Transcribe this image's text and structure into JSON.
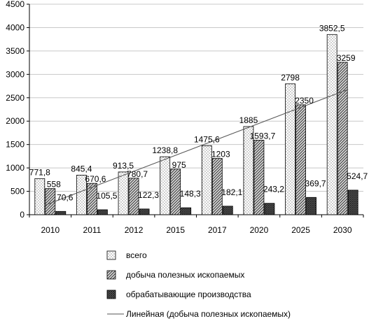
{
  "chart_data": {
    "type": "bar",
    "title": "",
    "xlabel": "",
    "ylabel": "",
    "ylim": [
      0,
      4500
    ],
    "yticks": [
      0,
      500,
      1000,
      1500,
      2000,
      2500,
      3000,
      3500,
      4000,
      4500
    ],
    "grid": true,
    "legend_position": "bottom",
    "categories": [
      "2010",
      "2011",
      "2012",
      "2015",
      "2017",
      "2020",
      "2025",
      "2030"
    ],
    "series": [
      {
        "name": "всего",
        "pattern": "dots",
        "values": [
          771.8,
          845.4,
          913.5,
          1238.8,
          1475.6,
          1885,
          2798,
          3852.5
        ],
        "labels": [
          "771,8",
          "845,4",
          "913,5",
          "1238,8",
          "1475,6",
          "1885",
          "2798",
          "3852,5"
        ]
      },
      {
        "name": "добыча полезных ископаемых",
        "pattern": "diagonal",
        "values": [
          558,
          670.6,
          780.7,
          975,
          1203,
          1593.7,
          2350,
          3259
        ],
        "labels": [
          "558",
          "670,6",
          "780,7",
          "975",
          "1203",
          "1593,7",
          "2350",
          "3259"
        ]
      },
      {
        "name": "обрабатывающие производства",
        "pattern": "dense-crosshatch",
        "values": [
          70.6,
          105.5,
          122.3,
          148.3,
          182.1,
          243.2,
          369.7,
          524.7
        ],
        "labels": [
          "70,6",
          "105,5",
          "122,3",
          "148,3",
          "182,1",
          "243,2",
          "369,7",
          "524,7"
        ]
      }
    ],
    "trendline": {
      "name": "Линейная (добыча полезных ископаемых)",
      "of_series": "добыча полезных ископаемых",
      "start_value": 200,
      "end_value": 2680
    }
  }
}
